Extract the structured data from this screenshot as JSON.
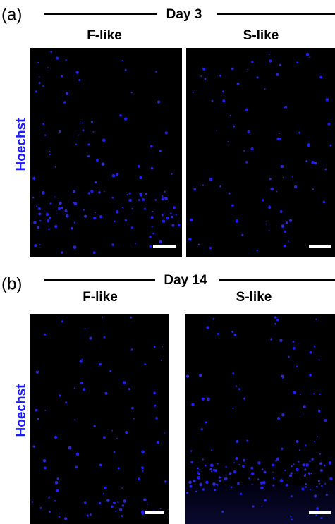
{
  "panels": [
    {
      "label": "(a)",
      "day": "Day 3",
      "columns": [
        "F-like",
        "S-like"
      ],
      "row_label": "Hoechst"
    },
    {
      "label": "(b)",
      "day": "Day 14",
      "columns": [
        "F-like",
        "S-like"
      ],
      "row_label": "Hoechst"
    }
  ]
}
